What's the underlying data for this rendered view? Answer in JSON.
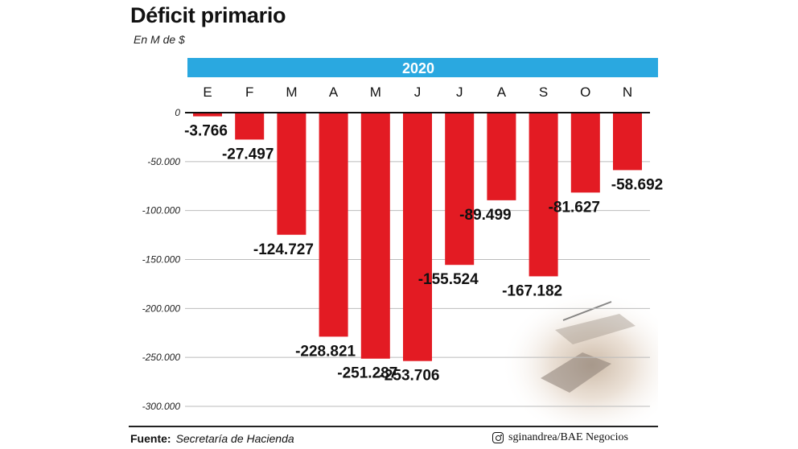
{
  "title": "Déficit primario",
  "subtitle": "En M de $",
  "footer": {
    "source_label": "Fuente:",
    "source": "Secretaría de Hacienda",
    "credit": "sginandrea/BAE Negocios"
  },
  "icons": {
    "credit_icon": "instagram-icon",
    "photo": "banknotes-photo"
  },
  "colors": {
    "bar": "#e31b23",
    "banner": "#2aa8e0",
    "grid": "#bbbbbb"
  },
  "chart_data": {
    "type": "bar",
    "banner": "2020",
    "categories": [
      "E",
      "F",
      "M",
      "A",
      "M",
      "J",
      "J",
      "A",
      "S",
      "O",
      "N"
    ],
    "values": [
      -3766,
      -27497,
      -124727,
      -228821,
      -251287,
      -253706,
      -155524,
      -89499,
      -167182,
      -81627,
      -58692
    ],
    "value_labels": [
      "-3.766",
      "-27.497",
      "-124.727",
      "-228.821",
      "-251.287",
      "-253.706",
      "-155.524",
      "-89.499",
      "-167.182",
      "-81.627",
      "-58.692"
    ],
    "ylim": [
      -300000,
      0
    ],
    "yticks": [
      0,
      -50000,
      -100000,
      -150000,
      -200000,
      -250000,
      -300000
    ],
    "ytick_labels": [
      "0",
      "-50.000",
      "-100.000",
      "-150.000",
      "-200.000",
      "-250.000",
      "-300.000"
    ],
    "grid": true,
    "xlabel": "",
    "ylabel": ""
  }
}
